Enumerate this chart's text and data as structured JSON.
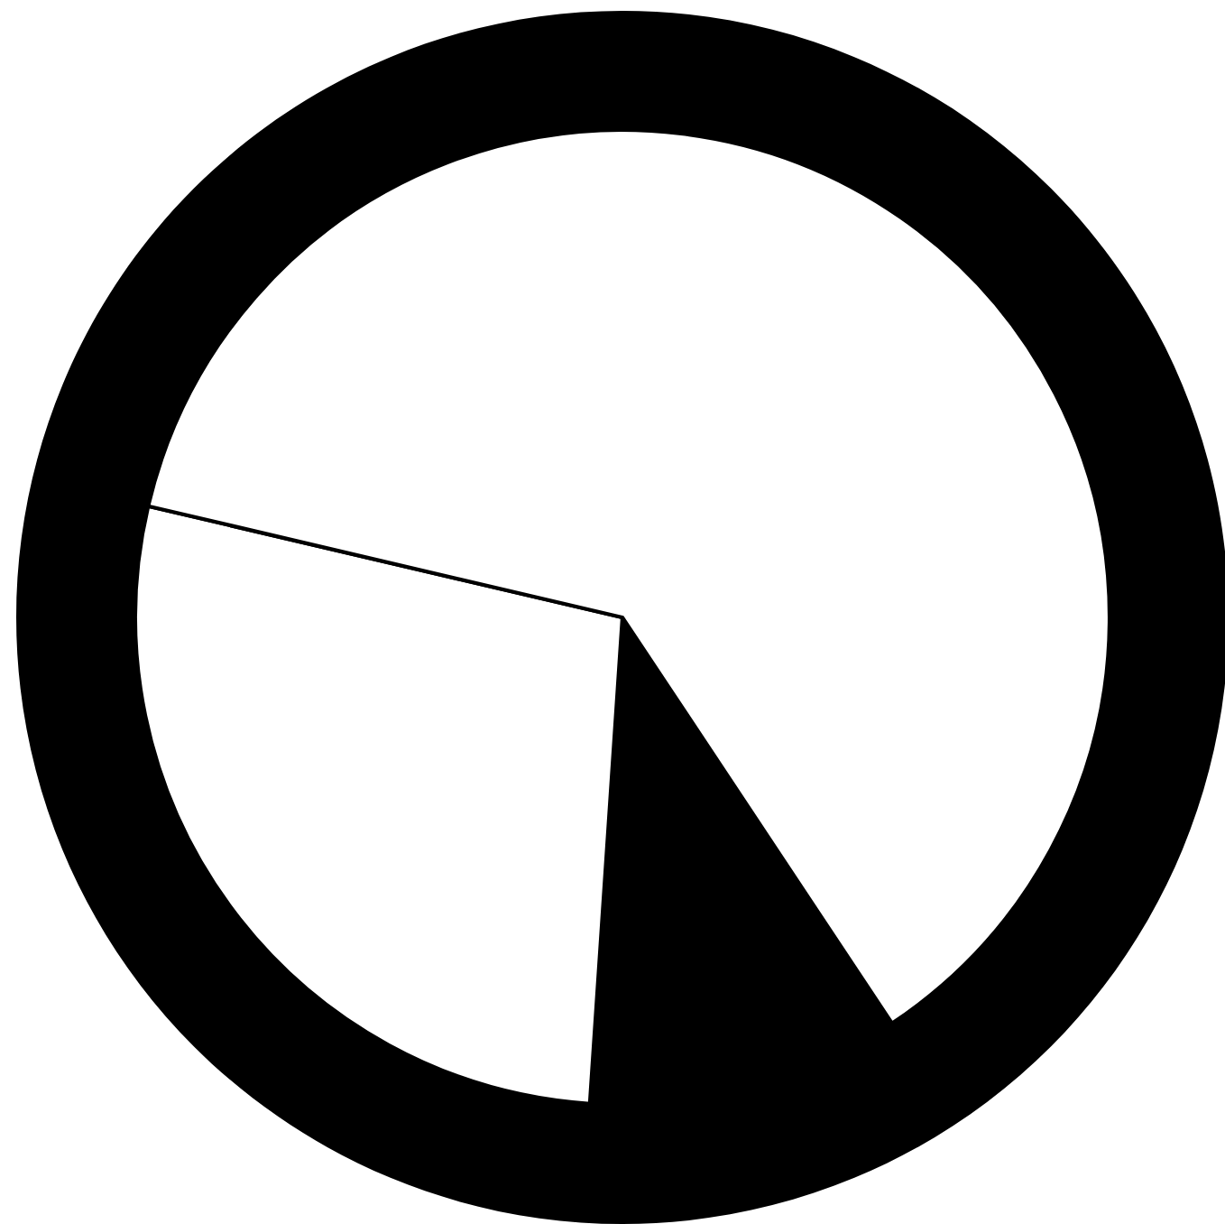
{
  "chart_data": {
    "type": "pie",
    "categories": [
      null,
      null,
      null
    ],
    "values": [
      10.4,
      27.6,
      62.0
    ],
    "colors": [
      "#000000",
      "#ffffff",
      "#ffffff"
    ]
  }
}
